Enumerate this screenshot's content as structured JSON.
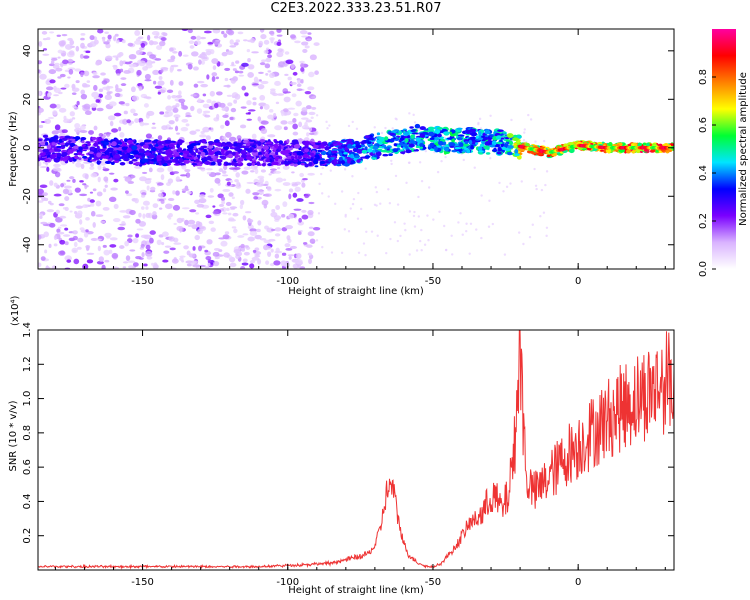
{
  "page": {
    "title": "C2E3.2022.333.23.51.R07"
  },
  "chart_data": [
    {
      "type": "heatmap",
      "title": "C2E3.2022.333.23.51.R07",
      "xlabel": "Height of straight line (km)",
      "ylabel": "Frequency (Hz)",
      "xlim": [
        -186,
        33
      ],
      "ylim": [
        -50,
        49
      ],
      "x_ticks": [
        -150,
        -100,
        -50,
        0
      ],
      "x_tick_labels": [
        "-150",
        "-100",
        "-50",
        "0"
      ],
      "y_ticks": [
        -40,
        -20,
        0,
        20,
        40
      ],
      "y_tick_labels": [
        "-40",
        "-20",
        "0",
        "20",
        "40"
      ],
      "colorbar": {
        "label": "Normalized spectral amplitude",
        "range": [
          0,
          1
        ],
        "ticks": [
          0.0,
          0.2,
          0.4,
          0.6,
          0.8
        ],
        "tick_labels": [
          "0.0",
          "0.2",
          "0.4",
          "0.6",
          "0.8"
        ],
        "colormap": [
          "#ffffff",
          "#d9b3ff",
          "#7a00ff",
          "#0000ff",
          "#00e5ff",
          "#00ff33",
          "#ffff00",
          "#ff8000",
          "#ff0000",
          "#ff00a0"
        ]
      },
      "ridge": [
        {
          "x": -186,
          "y": 0,
          "amp": 0.3
        },
        {
          "x": -150,
          "y": -2,
          "amp": 0.35
        },
        {
          "x": -120,
          "y": -2,
          "amp": 0.3
        },
        {
          "x": -100,
          "y": -2,
          "amp": 0.3
        },
        {
          "x": -85,
          "y": -3,
          "amp": 0.4
        },
        {
          "x": -75,
          "y": -1,
          "amp": 0.45
        },
        {
          "x": -65,
          "y": 2,
          "amp": 0.5
        },
        {
          "x": -55,
          "y": 4,
          "amp": 0.5
        },
        {
          "x": -45,
          "y": 3,
          "amp": 0.55
        },
        {
          "x": -35,
          "y": 3,
          "amp": 0.5
        },
        {
          "x": -25,
          "y": 2,
          "amp": 0.5
        },
        {
          "x": -18,
          "y": 0,
          "amp": 0.9
        },
        {
          "x": -10,
          "y": -2,
          "amp": 0.85
        },
        {
          "x": 0,
          "y": 1,
          "amp": 0.9
        },
        {
          "x": 10,
          "y": 0,
          "amp": 0.9
        },
        {
          "x": 33,
          "y": 0,
          "amp": 0.9
        }
      ],
      "noise_region": {
        "x_from": -186,
        "x_to": -90,
        "y_from": -50,
        "y_to": 49
      }
    },
    {
      "type": "line",
      "xlabel": "Height of straight line (km)",
      "ylabel": "SNR (10 * v/v)",
      "y_multiplier_label": "(x10⁴)",
      "xlim": [
        -186,
        33
      ],
      "ylim": [
        0,
        1.4
      ],
      "x_ticks": [
        -150,
        -100,
        -50,
        0
      ],
      "x_tick_labels": [
        "-150",
        "-100",
        "-50",
        "0"
      ],
      "y_ticks": [
        0.2,
        0.4,
        0.6,
        0.8,
        1.0,
        1.2,
        1.4
      ],
      "y_tick_labels": [
        "0.2",
        "0.4",
        "0.6",
        "0.8",
        "1.0",
        "1.2",
        "1.4"
      ],
      "color": "#ee3333",
      "series": [
        {
          "x": [
            -186,
            -170,
            -150,
            -130,
            -110,
            -95,
            -85,
            -80,
            -75,
            -72,
            -70,
            -68,
            -66,
            -64,
            -62,
            -60,
            -58,
            -55,
            -52,
            -50,
            -47,
            -45,
            -42,
            -40,
            -37,
            -35,
            -32,
            -30,
            -28,
            -26,
            -24,
            -22,
            -21,
            -20,
            -19,
            -18,
            -17,
            -15,
            -12,
            -10,
            -7,
            -5,
            -2,
            0,
            3,
            6,
            10,
            15,
            20,
            25,
            30,
            33
          ],
          "y": [
            0.02,
            0.02,
            0.02,
            0.02,
            0.02,
            0.03,
            0.04,
            0.06,
            0.08,
            0.1,
            0.14,
            0.25,
            0.45,
            0.5,
            0.3,
            0.15,
            0.08,
            0.04,
            0.02,
            0.02,
            0.04,
            0.08,
            0.14,
            0.2,
            0.28,
            0.3,
            0.35,
            0.45,
            0.4,
            0.35,
            0.45,
            0.7,
            1.0,
            1.35,
            0.9,
            0.6,
            0.5,
            0.45,
            0.5,
            0.55,
            0.6,
            0.65,
            0.7,
            0.72,
            0.78,
            0.82,
            0.88,
            0.95,
            1.0,
            1.05,
            1.1,
            1.12
          ]
        }
      ]
    }
  ]
}
